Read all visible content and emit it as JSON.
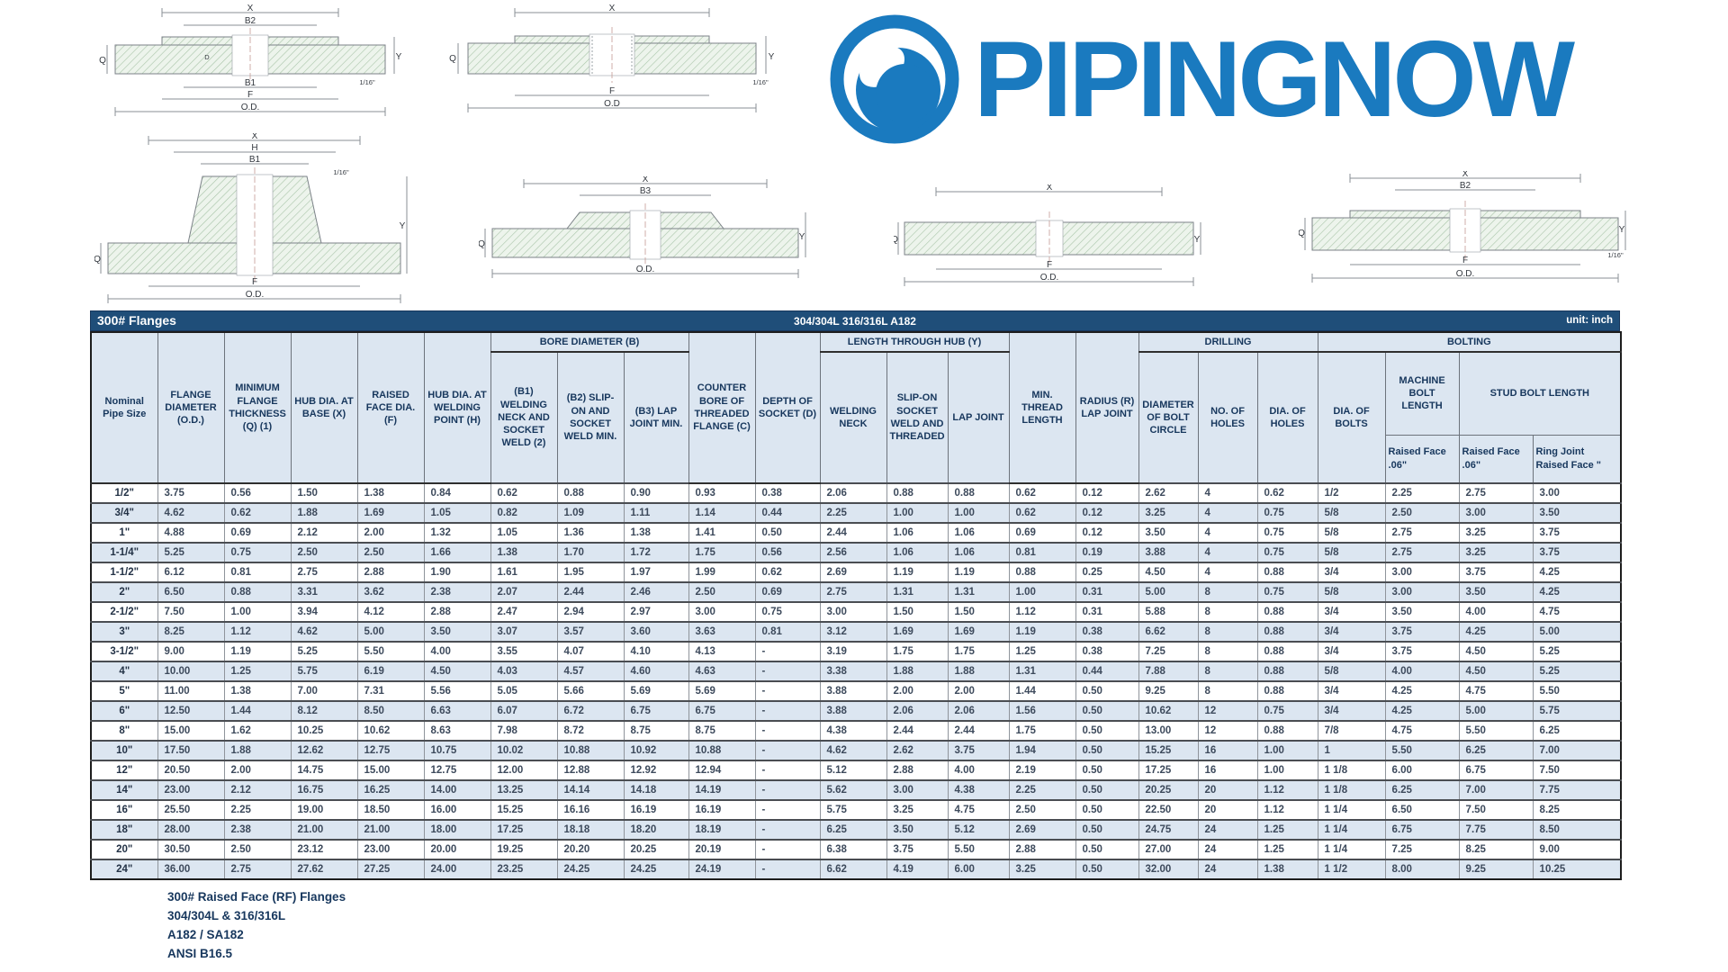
{
  "logo": {
    "text": "PIPINGNOW",
    "blue": "#1a7abf"
  },
  "table": {
    "title": "300# Flanges",
    "subtitle": "304/304L 316/316L A182",
    "unit": "unit: inch",
    "header": {
      "groups": {
        "bore": "BORE DIAMETER (B)",
        "hub": "LENGTH THROUGH HUB (Y)",
        "drilling": "DRILLING",
        "bolting": "BOLTING"
      },
      "cols": {
        "nominal": "Nominal Pipe Size",
        "od": "FLANGE DIAMETER (O.D.)",
        "thickness": "MINIMUM FLANGE THICKNESS (Q) (1)",
        "hub_base": "HUB DIA. AT BASE (X)",
        "raised_face": "RAISED FACE DIA. (F)",
        "hub_weld": "HUB DIA. AT WELDING POINT (H)",
        "b1": "(B1) WELDING NECK AND SOCKET WELD (2)",
        "b2": "(B2) SLIP-ON AND SOCKET WELD MIN.",
        "b3": "(B3) LAP JOINT MIN.",
        "counter_bore": "COUNTER BORE OF THREADED FLANGE (C)",
        "socket_depth": "DEPTH OF SOCKET (D)",
        "welding_neck": "WELDING NECK",
        "slip_on": "SLIP-ON SOCKET WELD AND THREADED",
        "lap_joint": "LAP JOINT",
        "min_thread": "MIN. THREAD LENGTH",
        "radius": "RADIUS (R) LAP JOINT",
        "bolt_circle": "DIAMETER OF BOLT CIRCLE",
        "num_holes": "NO. OF HOLES",
        "dia_holes": "DIA. OF HOLES",
        "dia_bolts": "DIA. OF BOLTS",
        "machine_bolt": "MACHINE BOLT LENGTH",
        "stud_bolt": "STUD BOLT LENGTH",
        "mbl_raised": "Raised Face .06\"",
        "sbl_raised": "Raised Face .06\"",
        "ring_joint": "Ring Joint Raised Face \""
      }
    },
    "rows": [
      [
        "1/2\"",
        "3.75",
        "0.56",
        "1.50",
        "1.38",
        "0.84",
        "0.62",
        "0.88",
        "0.90",
        "0.93",
        "0.38",
        "2.06",
        "0.88",
        "0.88",
        "0.62",
        "0.12",
        "2.62",
        "4",
        "0.62",
        "1/2",
        "2.25",
        "2.75",
        "3.00"
      ],
      [
        "3/4\"",
        "4.62",
        "0.62",
        "1.88",
        "1.69",
        "1.05",
        "0.82",
        "1.09",
        "1.11",
        "1.14",
        "0.44",
        "2.25",
        "1.00",
        "1.00",
        "0.62",
        "0.12",
        "3.25",
        "4",
        "0.75",
        "5/8",
        "2.50",
        "3.00",
        "3.50"
      ],
      [
        "1\"",
        "4.88",
        "0.69",
        "2.12",
        "2.00",
        "1.32",
        "1.05",
        "1.36",
        "1.38",
        "1.41",
        "0.50",
        "2.44",
        "1.06",
        "1.06",
        "0.69",
        "0.12",
        "3.50",
        "4",
        "0.75",
        "5/8",
        "2.75",
        "3.25",
        "3.75"
      ],
      [
        "1-1/4\"",
        "5.25",
        "0.75",
        "2.50",
        "2.50",
        "1.66",
        "1.38",
        "1.70",
        "1.72",
        "1.75",
        "0.56",
        "2.56",
        "1.06",
        "1.06",
        "0.81",
        "0.19",
        "3.88",
        "4",
        "0.75",
        "5/8",
        "2.75",
        "3.25",
        "3.75"
      ],
      [
        "1-1/2\"",
        "6.12",
        "0.81",
        "2.75",
        "2.88",
        "1.90",
        "1.61",
        "1.95",
        "1.97",
        "1.99",
        "0.62",
        "2.69",
        "1.19",
        "1.19",
        "0.88",
        "0.25",
        "4.50",
        "4",
        "0.88",
        "3/4",
        "3.00",
        "3.75",
        "4.25"
      ],
      [
        "2\"",
        "6.50",
        "0.88",
        "3.31",
        "3.62",
        "2.38",
        "2.07",
        "2.44",
        "2.46",
        "2.50",
        "0.69",
        "2.75",
        "1.31",
        "1.31",
        "1.00",
        "0.31",
        "5.00",
        "8",
        "0.75",
        "5/8",
        "3.00",
        "3.50",
        "4.25"
      ],
      [
        "2-1/2\"",
        "7.50",
        "1.00",
        "3.94",
        "4.12",
        "2.88",
        "2.47",
        "2.94",
        "2.97",
        "3.00",
        "0.75",
        "3.00",
        "1.50",
        "1.50",
        "1.12",
        "0.31",
        "5.88",
        "8",
        "0.88",
        "3/4",
        "3.50",
        "4.00",
        "4.75"
      ],
      [
        "3\"",
        "8.25",
        "1.12",
        "4.62",
        "5.00",
        "3.50",
        "3.07",
        "3.57",
        "3.60",
        "3.63",
        "0.81",
        "3.12",
        "1.69",
        "1.69",
        "1.19",
        "0.38",
        "6.62",
        "8",
        "0.88",
        "3/4",
        "3.75",
        "4.25",
        "5.00"
      ],
      [
        "3-1/2\"",
        "9.00",
        "1.19",
        "5.25",
        "5.50",
        "4.00",
        "3.55",
        "4.07",
        "4.10",
        "4.13",
        "-",
        "3.19",
        "1.75",
        "1.75",
        "1.25",
        "0.38",
        "7.25",
        "8",
        "0.88",
        "3/4",
        "3.75",
        "4.50",
        "5.25"
      ],
      [
        "4\"",
        "10.00",
        "1.25",
        "5.75",
        "6.19",
        "4.50",
        "4.03",
        "4.57",
        "4.60",
        "4.63",
        "-",
        "3.38",
        "1.88",
        "1.88",
        "1.31",
        "0.44",
        "7.88",
        "8",
        "0.88",
        "5/8",
        "4.00",
        "4.50",
        "5.25"
      ],
      [
        "5\"",
        "11.00",
        "1.38",
        "7.00",
        "7.31",
        "5.56",
        "5.05",
        "5.66",
        "5.69",
        "5.69",
        "-",
        "3.88",
        "2.00",
        "2.00",
        "1.44",
        "0.50",
        "9.25",
        "8",
        "0.88",
        "3/4",
        "4.25",
        "4.75",
        "5.50"
      ],
      [
        "6\"",
        "12.50",
        "1.44",
        "8.12",
        "8.50",
        "6.63",
        "6.07",
        "6.72",
        "6.75",
        "6.75",
        "-",
        "3.88",
        "2.06",
        "2.06",
        "1.56",
        "0.50",
        "10.62",
        "12",
        "0.75",
        "3/4",
        "4.25",
        "5.00",
        "5.75"
      ],
      [
        "8\"",
        "15.00",
        "1.62",
        "10.25",
        "10.62",
        "8.63",
        "7.98",
        "8.72",
        "8.75",
        "8.75",
        "-",
        "4.38",
        "2.44",
        "2.44",
        "1.75",
        "0.50",
        "13.00",
        "12",
        "0.88",
        "7/8",
        "4.75",
        "5.50",
        "6.25"
      ],
      [
        "10\"",
        "17.50",
        "1.88",
        "12.62",
        "12.75",
        "10.75",
        "10.02",
        "10.88",
        "10.92",
        "10.88",
        "-",
        "4.62",
        "2.62",
        "3.75",
        "1.94",
        "0.50",
        "15.25",
        "16",
        "1.00",
        "1",
        "5.50",
        "6.25",
        "7.00"
      ],
      [
        "12\"",
        "20.50",
        "2.00",
        "14.75",
        "15.00",
        "12.75",
        "12.00",
        "12.88",
        "12.92",
        "12.94",
        "-",
        "5.12",
        "2.88",
        "4.00",
        "2.19",
        "0.50",
        "17.25",
        "16",
        "1.00",
        "1 1/8",
        "6.00",
        "6.75",
        "7.50"
      ],
      [
        "14\"",
        "23.00",
        "2.12",
        "16.75",
        "16.25",
        "14.00",
        "13.25",
        "14.14",
        "14.18",
        "14.19",
        "-",
        "5.62",
        "3.00",
        "4.38",
        "2.25",
        "0.50",
        "20.25",
        "20",
        "1.12",
        "1 1/8",
        "6.25",
        "7.00",
        "7.75"
      ],
      [
        "16\"",
        "25.50",
        "2.25",
        "19.00",
        "18.50",
        "16.00",
        "15.25",
        "16.16",
        "16.19",
        "16.19",
        "-",
        "5.75",
        "3.25",
        "4.75",
        "2.50",
        "0.50",
        "22.50",
        "20",
        "1.12",
        "1 1/4",
        "6.50",
        "7.50",
        "8.25"
      ],
      [
        "18\"",
        "28.00",
        "2.38",
        "21.00",
        "21.00",
        "18.00",
        "17.25",
        "18.18",
        "18.20",
        "18.19",
        "-",
        "6.25",
        "3.50",
        "5.12",
        "2.69",
        "0.50",
        "24.75",
        "24",
        "1.25",
        "1 1/4",
        "6.75",
        "7.75",
        "8.50"
      ],
      [
        "20\"",
        "30.50",
        "2.50",
        "23.12",
        "23.00",
        "20.00",
        "19.25",
        "20.20",
        "20.25",
        "20.19",
        "-",
        "6.38",
        "3.75",
        "5.50",
        "2.88",
        "0.50",
        "27.00",
        "24",
        "1.25",
        "1 1/4",
        "7.25",
        "8.25",
        "9.00"
      ],
      [
        "24\"",
        "36.00",
        "2.75",
        "27.62",
        "27.25",
        "24.00",
        "23.25",
        "24.25",
        "24.25",
        "24.19",
        "-",
        "6.62",
        "4.19",
        "6.00",
        "3.25",
        "0.50",
        "32.00",
        "24",
        "1.38",
        "1 1/2",
        "8.00",
        "9.25",
        "10.25"
      ]
    ]
  },
  "footer": {
    "lines": [
      "300# Raised Face (RF) Flanges",
      "304/304L & 316/316L",
      "A182 / SA182",
      "ANSI B16.5"
    ]
  },
  "diagrams": {
    "d1": {
      "labels": [
        "X",
        "B2",
        "B1",
        "F",
        "O.D.",
        "Q",
        "Y",
        "D",
        "1/16\""
      ]
    },
    "d2": {
      "labels": [
        "X",
        "F",
        "O.D",
        "Q",
        "Y",
        "1/16\""
      ]
    },
    "d3": {
      "labels": [
        "X",
        "H",
        "B1",
        "1/16\"",
        "Q",
        "Y",
        "F",
        "O.D."
      ]
    },
    "d4": {
      "labels": [
        "X",
        "B3",
        "Q",
        "Y",
        "O.D."
      ]
    },
    "d5": {
      "labels": [
        "X",
        "Q",
        "Y",
        "F",
        "O.D."
      ]
    },
    "d6": {
      "labels": [
        "X",
        "B2",
        "Q",
        "Y",
        "F",
        "O.D.",
        "1/16\""
      ]
    }
  },
  "colors": {
    "title_bar": "#1f4e79",
    "header_bg": "#dce6f1",
    "row_alt": "#dce6f1",
    "logo_blue": "#1a7abf",
    "text_dark": "#17375d"
  }
}
